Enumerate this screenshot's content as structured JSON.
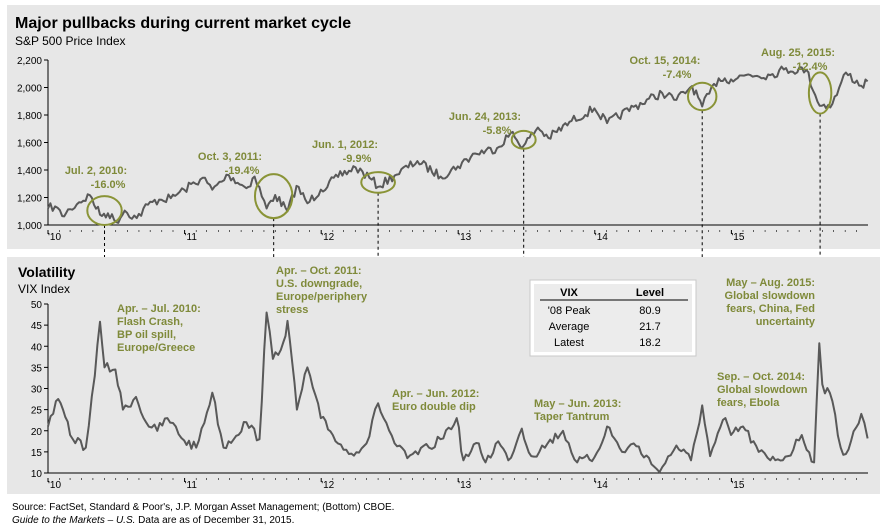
{
  "chart_data": [
    {
      "type": "line",
      "title": "Major pullbacks during current market cycle",
      "subtitle": "S&P 500 Price Index",
      "x_tick_labels": [
        "'10",
        "'11",
        "'12",
        "'13",
        "'14",
        "'15"
      ],
      "ylim": [
        1000,
        2200
      ],
      "y_ticks": [
        "1,000",
        "1,200",
        "1,400",
        "1,600",
        "1,800",
        "2,000",
        "2,200"
      ],
      "grid": false,
      "series": [
        {
          "values": [
            {
              "x": "2010-01-01",
              "y": 1120
            },
            {
              "x": "2010-01-20",
              "y": 1135
            },
            {
              "x": "2010-02-08",
              "y": 1065
            },
            {
              "x": "2010-03-01",
              "y": 1115
            },
            {
              "x": "2010-03-25",
              "y": 1165
            },
            {
              "x": "2010-04-23",
              "y": 1217
            },
            {
              "x": "2010-05-20",
              "y": 1075
            },
            {
              "x": "2010-06-10",
              "y": 1085
            },
            {
              "x": "2010-07-02",
              "y": 1022
            },
            {
              "x": "2010-07-25",
              "y": 1105
            },
            {
              "x": "2010-08-26",
              "y": 1050
            },
            {
              "x": "2010-09-25",
              "y": 1148
            },
            {
              "x": "2010-10-25",
              "y": 1185
            },
            {
              "x": "2010-11-25",
              "y": 1195
            },
            {
              "x": "2010-12-31",
              "y": 1257
            },
            {
              "x": "2011-02-18",
              "y": 1343
            },
            {
              "x": "2011-03-16",
              "y": 1257
            },
            {
              "x": "2011-04-29",
              "y": 1363
            },
            {
              "x": "2011-06-15",
              "y": 1268
            },
            {
              "x": "2011-07-07",
              "y": 1353
            },
            {
              "x": "2011-08-08",
              "y": 1120
            },
            {
              "x": "2011-08-31",
              "y": 1218
            },
            {
              "x": "2011-10-03",
              "y": 1099
            },
            {
              "x": "2011-10-27",
              "y": 1284
            },
            {
              "x": "2011-11-25",
              "y": 1158
            },
            {
              "x": "2011-12-31",
              "y": 1257
            },
            {
              "x": "2012-02-15",
              "y": 1350
            },
            {
              "x": "2012-04-02",
              "y": 1419
            },
            {
              "x": "2012-05-15",
              "y": 1330
            },
            {
              "x": "2012-06-01",
              "y": 1278
            },
            {
              "x": "2012-07-15",
              "y": 1360
            },
            {
              "x": "2012-09-14",
              "y": 1465
            },
            {
              "x": "2012-11-15",
              "y": 1353
            },
            {
              "x": "2012-12-31",
              "y": 1426
            },
            {
              "x": "2013-02-15",
              "y": 1520
            },
            {
              "x": "2013-04-15",
              "y": 1560
            },
            {
              "x": "2013-05-21",
              "y": 1669
            },
            {
              "x": "2013-06-24",
              "y": 1573
            },
            {
              "x": "2013-08-02",
              "y": 1709
            },
            {
              "x": "2013-08-30",
              "y": 1633
            },
            {
              "x": "2013-10-31",
              "y": 1757
            },
            {
              "x": "2013-12-31",
              "y": 1848
            },
            {
              "x": "2014-02-03",
              "y": 1741
            },
            {
              "x": "2014-04-15",
              "y": 1860
            },
            {
              "x": "2014-06-30",
              "y": 1960
            },
            {
              "x": "2014-08-07",
              "y": 1910
            },
            {
              "x": "2014-09-18",
              "y": 2011
            },
            {
              "x": "2014-10-15",
              "y": 1862
            },
            {
              "x": "2014-11-28",
              "y": 2067
            },
            {
              "x": "2014-12-31",
              "y": 2059
            },
            {
              "x": "2015-02-15",
              "y": 2095
            },
            {
              "x": "2015-04-15",
              "y": 2090
            },
            {
              "x": "2015-05-21",
              "y": 2131
            },
            {
              "x": "2015-07-20",
              "y": 2128
            },
            {
              "x": "2015-08-25",
              "y": 1867
            },
            {
              "x": "2015-09-28",
              "y": 1881
            },
            {
              "x": "2015-11-03",
              "y": 2109
            },
            {
              "x": "2015-12-14",
              "y": 2012
            },
            {
              "x": "2015-12-31",
              "y": 2044
            }
          ]
        }
      ],
      "annotations": [
        {
          "date": "Jul. 2, 2010:",
          "pct": "-16.0%",
          "x": "2010-06-01",
          "y": 1105,
          "rx_days": 46,
          "ry": 105
        },
        {
          "date": "Oct. 3, 2011:",
          "pct": "-19.4%",
          "x": "2011-08-27",
          "y": 1210,
          "rx_days": 50,
          "ry": 160
        },
        {
          "date": "Jun. 1, 2012:",
          "pct": "-9.9%",
          "x": "2012-06-01",
          "y": 1310,
          "rx_days": 45,
          "ry": 75
        },
        {
          "date": "Jun. 24, 2013:",
          "pct": "-5.8%",
          "x": "2013-06-25",
          "y": 1620,
          "rx_days": 32,
          "ry": 65
        },
        {
          "date": "Oct. 15, 2014:",
          "pct": "-7.4%",
          "x": "2014-10-15",
          "y": 1935,
          "rx_days": 38,
          "ry": 100
        },
        {
          "date": "Aug. 25, 2015:",
          "pct": "-12.4%",
          "x": "2015-08-26",
          "y": 1960,
          "rx_days": 30,
          "ry": 150
        }
      ]
    },
    {
      "type": "line",
      "title": "Volatility",
      "subtitle": "VIX Index",
      "x_tick_labels": [
        "'10",
        "'11",
        "'12",
        "'13",
        "'14",
        "'15"
      ],
      "ylim": [
        10,
        50
      ],
      "y_ticks": [
        "10",
        "15",
        "20",
        "25",
        "30",
        "35",
        "40",
        "45",
        "50"
      ],
      "grid": false,
      "series": [
        {
          "values": [
            {
              "x": "2010-01-01",
              "y": 21
            },
            {
              "x": "2010-01-22",
              "y": 27
            },
            {
              "x": "2010-02-10",
              "y": 25
            },
            {
              "x": "2010-03-01",
              "y": 19
            },
            {
              "x": "2010-04-12",
              "y": 16
            },
            {
              "x": "2010-05-06",
              "y": 33
            },
            {
              "x": "2010-05-20",
              "y": 45.8
            },
            {
              "x": "2010-06-01",
              "y": 35
            },
            {
              "x": "2010-06-30",
              "y": 34.5
            },
            {
              "x": "2010-07-20",
              "y": 25
            },
            {
              "x": "2010-08-24",
              "y": 28
            },
            {
              "x": "2010-09-20",
              "y": 22
            },
            {
              "x": "2010-10-20",
              "y": 20
            },
            {
              "x": "2010-11-16",
              "y": 23
            },
            {
              "x": "2010-12-31",
              "y": 17.7
            },
            {
              "x": "2011-02-01",
              "y": 16
            },
            {
              "x": "2011-03-16",
              "y": 29
            },
            {
              "x": "2011-04-15",
              "y": 16
            },
            {
              "x": "2011-06-15",
              "y": 22
            },
            {
              "x": "2011-07-20",
              "y": 18
            },
            {
              "x": "2011-08-08",
              "y": 48
            },
            {
              "x": "2011-08-25",
              "y": 37
            },
            {
              "x": "2011-09-22",
              "y": 41
            },
            {
              "x": "2011-10-03",
              "y": 46
            },
            {
              "x": "2011-10-28",
              "y": 25
            },
            {
              "x": "2011-11-25",
              "y": 35
            },
            {
              "x": "2011-12-31",
              "y": 23
            },
            {
              "x": "2012-02-01",
              "y": 19
            },
            {
              "x": "2012-03-15",
              "y": 14.5
            },
            {
              "x": "2012-05-01",
              "y": 17
            },
            {
              "x": "2012-06-01",
              "y": 26.5
            },
            {
              "x": "2012-07-15",
              "y": 17
            },
            {
              "x": "2012-08-18",
              "y": 13.5
            },
            {
              "x": "2012-10-15",
              "y": 16
            },
            {
              "x": "2012-11-15",
              "y": 18
            },
            {
              "x": "2012-12-28",
              "y": 23
            },
            {
              "x": "2013-01-15",
              "y": 13
            },
            {
              "x": "2013-02-25",
              "y": 17
            },
            {
              "x": "2013-03-15",
              "y": 12.5
            },
            {
              "x": "2013-04-18",
              "y": 17.5
            },
            {
              "x": "2013-05-15",
              "y": 13
            },
            {
              "x": "2013-06-20",
              "y": 20.5
            },
            {
              "x": "2013-07-15",
              "y": 14
            },
            {
              "x": "2013-08-28",
              "y": 17
            },
            {
              "x": "2013-10-08",
              "y": 20
            },
            {
              "x": "2013-11-15",
              "y": 12.5
            },
            {
              "x": "2013-12-31",
              "y": 13.7
            },
            {
              "x": "2014-02-03",
              "y": 21
            },
            {
              "x": "2014-03-15",
              "y": 15
            },
            {
              "x": "2014-04-15",
              "y": 17
            },
            {
              "x": "2014-06-15",
              "y": 11
            },
            {
              "x": "2014-07-01",
              "y": 11.5
            },
            {
              "x": "2014-08-07",
              "y": 16.5
            },
            {
              "x": "2014-09-15",
              "y": 13
            },
            {
              "x": "2014-10-15",
              "y": 26
            },
            {
              "x": "2014-11-05",
              "y": 14
            },
            {
              "x": "2014-12-16",
              "y": 23
            },
            {
              "x": "2014-12-31",
              "y": 19
            },
            {
              "x": "2015-02-01",
              "y": 21
            },
            {
              "x": "2015-03-15",
              "y": 15
            },
            {
              "x": "2015-04-15",
              "y": 13
            },
            {
              "x": "2015-06-01",
              "y": 14
            },
            {
              "x": "2015-07-08",
              "y": 19
            },
            {
              "x": "2015-08-10",
              "y": 12.5
            },
            {
              "x": "2015-08-24",
              "y": 40.7
            },
            {
              "x": "2015-09-01",
              "y": 31
            },
            {
              "x": "2015-09-28",
              "y": 27
            },
            {
              "x": "2015-10-20",
              "y": 16
            },
            {
              "x": "2015-11-03",
              "y": 14.5
            },
            {
              "x": "2015-12-14",
              "y": 24
            },
            {
              "x": "2015-12-31",
              "y": 18.2
            }
          ]
        }
      ],
      "annotations": [
        {
          "lines": [
            "Apr. – Jul. 2010:",
            "Flash Crash,",
            "BP oil spill,",
            "Europe/Greece"
          ],
          "align": "left"
        },
        {
          "lines": [
            "Apr. – Oct. 2011:",
            "U.S. downgrade,",
            "Europe/periphery",
            "stress"
          ],
          "align": "left"
        },
        {
          "lines": [
            "Apr. – Jun. 2012:",
            "Euro double dip"
          ],
          "align": "left"
        },
        {
          "lines": [
            "May – Jun. 2013:",
            "Taper Tantrum"
          ],
          "align": "left"
        },
        {
          "lines": [
            "May – Aug. 2015:",
            "Global slowdown",
            "fears, China, Fed",
            "uncertainty"
          ],
          "align": "right"
        },
        {
          "lines": [
            "Sep. – Oct. 2014:",
            "Global slowdown",
            "fears, Ebola"
          ],
          "align": "left"
        }
      ],
      "table": {
        "headers": [
          "VIX",
          "Level"
        ],
        "rows": [
          [
            "'08 Peak",
            "80.9"
          ],
          [
            "Average",
            "21.7"
          ],
          [
            "Latest",
            "18.2"
          ]
        ]
      }
    }
  ],
  "colors": {
    "panel_bg": "#e7e7e7",
    "line": "#595959",
    "annotation": "#7f8a3a",
    "circle": "#8a9437",
    "table_bg": "#ffffff"
  },
  "footer": {
    "source": "Source: FactSet, Standard & Poor's, J.P. Morgan Asset Management; (Bottom) CBOE.",
    "guide": "Guide to the Markets – U.S.",
    "asof": " Data are as of December 31, 2015."
  }
}
